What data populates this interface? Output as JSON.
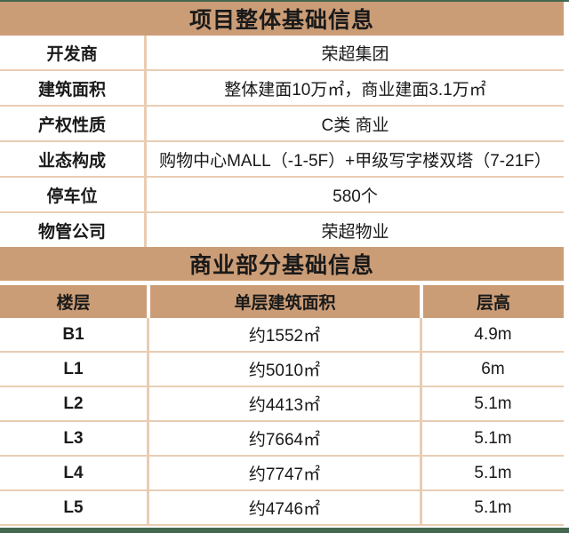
{
  "colors": {
    "accent_tan": "#CB9D77",
    "divider_light_tan": "#E8CDB3",
    "edge_bar_green": "#43684F",
    "text": "#1A1A1A"
  },
  "project_table": {
    "title": "项目整体基础信息",
    "rows": [
      {
        "label": "开发商",
        "value": "荣超集团"
      },
      {
        "label": "建筑面积",
        "value": "整体建面10万㎡，商业建面3.1万㎡"
      },
      {
        "label": "产权性质",
        "value": "C类 商业"
      },
      {
        "label": "业态构成",
        "value": "购物中心MALL（-1-5F）+甲级写字楼双塔（7-21F）"
      },
      {
        "label": "停车位",
        "value": "580个"
      },
      {
        "label": "物管公司",
        "value": "荣超物业"
      }
    ]
  },
  "commercial_table": {
    "title": "商业部分基础信息",
    "columns": [
      "楼层",
      "单层建筑面积",
      "层高"
    ],
    "rows": [
      {
        "floor": "B1",
        "area": "约1552㎡",
        "height": "4.9m"
      },
      {
        "floor": "L1",
        "area": "约5010㎡",
        "height": "6m"
      },
      {
        "floor": "L2",
        "area": "约4413㎡",
        "height": "5.1m"
      },
      {
        "floor": "L3",
        "area": "约7664㎡",
        "height": "5.1m"
      },
      {
        "floor": "L4",
        "area": "约7747㎡",
        "height": "5.1m"
      },
      {
        "floor": "L5",
        "area": "约4746㎡",
        "height": "5.1m"
      }
    ]
  }
}
